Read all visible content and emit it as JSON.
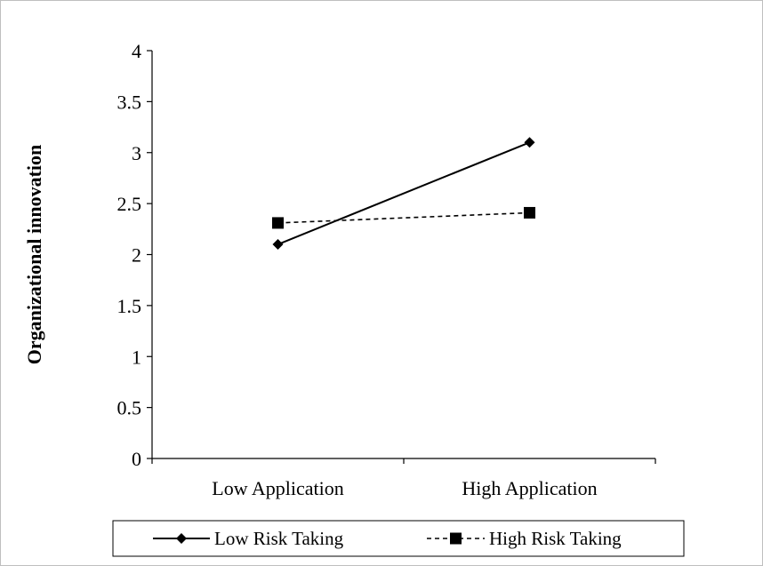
{
  "chart_data": {
    "type": "line",
    "title": "",
    "xlabel": "",
    "ylabel": "Organizational innovation",
    "categories": [
      "Low Application",
      "High Application"
    ],
    "ylim": [
      0,
      4
    ],
    "yticks": [
      0,
      0.5,
      1,
      1.5,
      2,
      2.5,
      3,
      3.5,
      4
    ],
    "ytick_labels": [
      "0",
      "0.5",
      "1",
      "1.5",
      "2",
      "2.5",
      "3",
      "3.5",
      "4"
    ],
    "grid": false,
    "legend_position": "bottom",
    "series": [
      {
        "name": "Low Risk Taking",
        "values": [
          2.1,
          3.1
        ],
        "line_style": "solid",
        "marker": "diamond",
        "color": "#000000"
      },
      {
        "name": "High Risk Taking",
        "values": [
          2.31,
          2.41
        ],
        "line_style": "dashed",
        "marker": "square",
        "color": "#000000"
      }
    ]
  }
}
